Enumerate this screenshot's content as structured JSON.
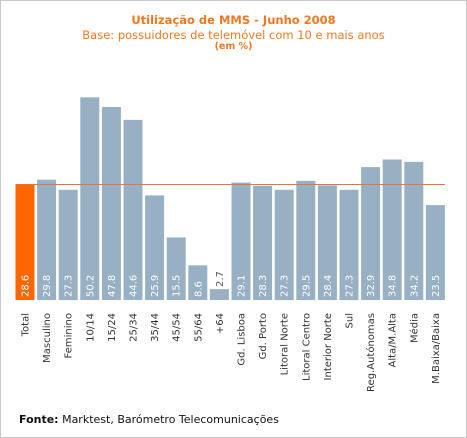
{
  "chart_data": {
    "type": "bar",
    "title": "Utilização de MMS - Junho 2008",
    "subtitle": "Base: possuidores de telemóvel com 10 e mais anos",
    "unit": "(em %)",
    "categories": [
      "Total",
      "Masculino",
      "Feminino",
      "10/14",
      "15/24",
      "25/34",
      "35/44",
      "45/54",
      "55/64",
      "+64",
      "Gd. Lisboa",
      "Gd. Porto",
      "Litoral Norte",
      "Litoral Centro",
      "Interior Norte",
      "Sul",
      "Reg.Autónomas",
      "Alta/M.Alta",
      "Média",
      "M.Baixa/Baixa"
    ],
    "value_labels": [
      "28.6",
      "29.8",
      "27.3",
      "50.2",
      "47.8",
      "44.6",
      "25.9",
      "15.5",
      "8.6",
      "2.7",
      "29.1",
      "28.3",
      "27.3",
      "29.5",
      "28.4",
      "27.3",
      "32.9",
      "34.8",
      "34.2",
      "23.5"
    ],
    "values": [
      28.6,
      29.8,
      27.3,
      50.2,
      47.8,
      44.6,
      25.9,
      15.5,
      8.6,
      2.7,
      29.1,
      28.3,
      27.3,
      29.5,
      28.4,
      27.3,
      32.9,
      34.8,
      34.2,
      23.5
    ],
    "reference_line": 28.6,
    "highlight_index": 0,
    "ylim": [
      0,
      52
    ],
    "grid": false,
    "colors": {
      "bar": "#98b0c4",
      "highlight": "#ff6600",
      "reference_line": "#e8743c",
      "value_label": "#ffffff",
      "category_label": "#333333"
    }
  },
  "source": {
    "label": "Fonte:",
    "text": "Marktest, Barómetro Telecomunicações"
  }
}
